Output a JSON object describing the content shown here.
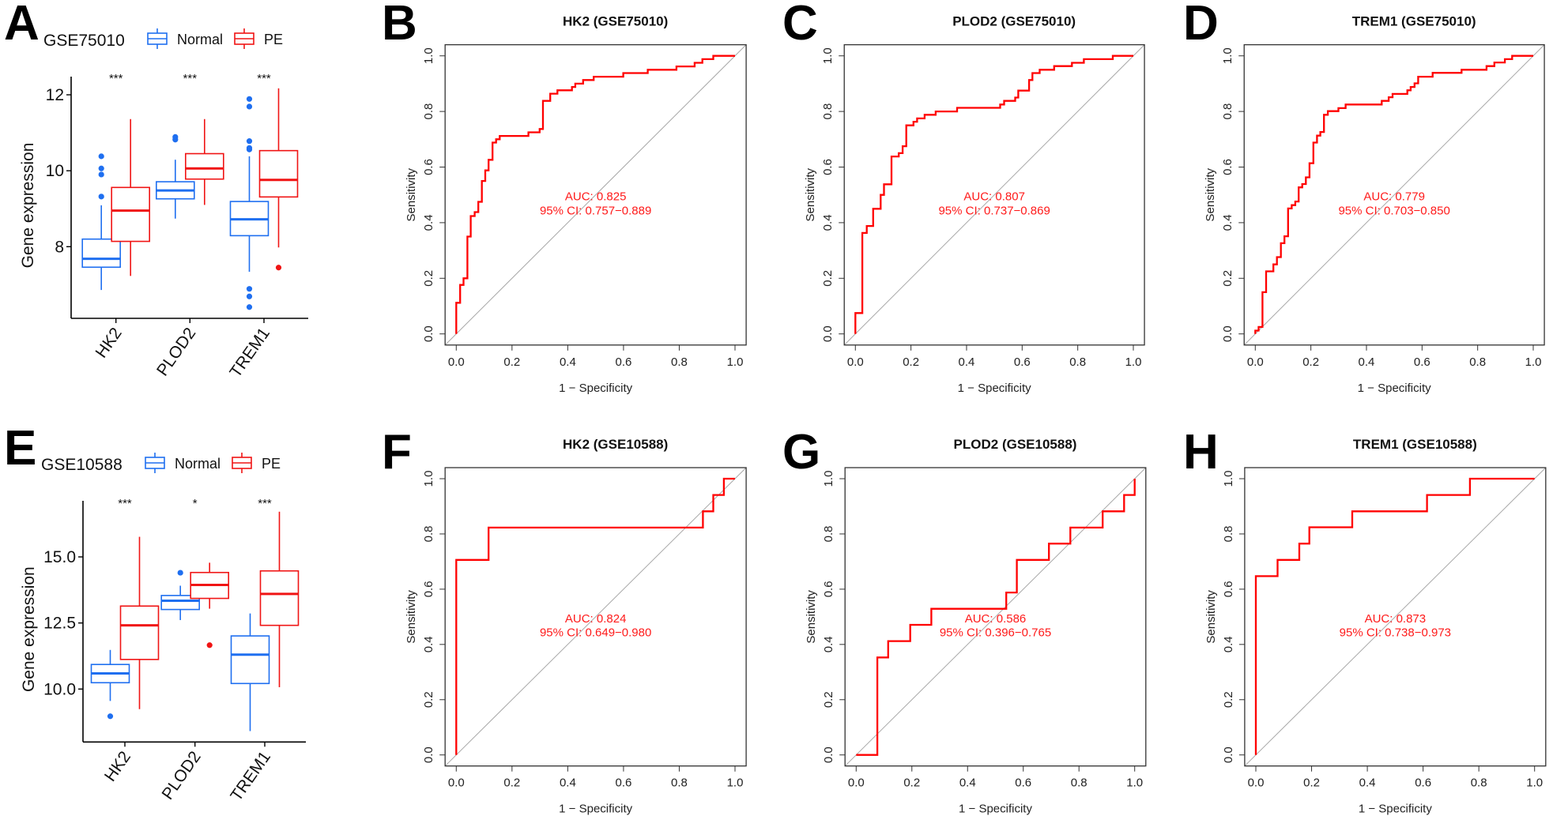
{
  "figure": {
    "colors": {
      "normal": "#1f6ff0",
      "pe": "#f01414",
      "roc_curve": "#ff0000",
      "diagonal": "#a8a8a8",
      "axis": "#333333"
    }
  },
  "chart_data": [
    {
      "panel": "A",
      "type": "boxplot",
      "title": "GSE75010",
      "ylabel": "Gene expression",
      "xlabel": "",
      "ylim": [
        6.2,
        12.6
      ],
      "yticks": [
        8,
        10,
        12
      ],
      "ytick_labels": [
        "8",
        "10",
        "12"
      ],
      "categories": [
        "HK2",
        "PLOD2",
        "TREM1"
      ],
      "legend": {
        "position": "top",
        "entries": [
          "Normal",
          "PE"
        ]
      },
      "significance": [
        "***",
        "***",
        "***"
      ],
      "series": [
        {
          "name": "Normal",
          "boxes": [
            {
              "whisker_low": 6.86,
              "q1": 7.46,
              "median": 7.68,
              "q3": 8.2,
              "whisker_high": 9.09,
              "outliers": [
                9.32,
                9.9,
                10.06,
                10.38
              ]
            },
            {
              "whisker_low": 8.74,
              "q1": 9.26,
              "median": 9.48,
              "q3": 9.71,
              "whisker_high": 10.29,
              "outliers": [
                10.82,
                10.89
              ]
            },
            {
              "whisker_low": 7.34,
              "q1": 8.29,
              "median": 8.72,
              "q3": 9.19,
              "whisker_high": 10.38,
              "outliers": [
                6.41,
                6.69,
                6.89,
                10.56,
                10.6,
                10.78,
                11.69,
                11.89
              ]
            }
          ]
        },
        {
          "name": "PE",
          "boxes": [
            {
              "whisker_low": 7.23,
              "q1": 8.14,
              "median": 8.95,
              "q3": 9.56,
              "whisker_high": 11.36,
              "outliers": []
            },
            {
              "whisker_low": 9.1,
              "q1": 9.78,
              "median": 10.06,
              "q3": 10.45,
              "whisker_high": 11.36,
              "outliers": []
            },
            {
              "whisker_low": 7.98,
              "q1": 9.31,
              "median": 9.76,
              "q3": 10.53,
              "whisker_high": 12.17,
              "outliers": [
                7.45
              ]
            }
          ]
        }
      ]
    },
    {
      "panel": "B",
      "type": "line",
      "subtype": "roc",
      "title": "HK2 (GSE75010)",
      "xlabel": "1 − Specificity",
      "ylabel": "Sensitivity",
      "xlim": [
        0,
        1
      ],
      "ylim": [
        0,
        1
      ],
      "ticks": [
        "0.0",
        "0.2",
        "0.4",
        "0.6",
        "0.8",
        "1.0"
      ],
      "auc_label": "AUC: 0.825",
      "ci_label": "95% CI: 0.757−0.889",
      "auc": 0.825,
      "ci": [
        0.757,
        0.889
      ],
      "x": [
        0,
        0,
        0.014,
        0.014,
        0.026,
        0.026,
        0.04,
        0.04,
        0.052,
        0.052,
        0.066,
        0.066,
        0.079,
        0.079,
        0.092,
        0.092,
        0.104,
        0.104,
        0.116,
        0.116,
        0.13,
        0.13,
        0.143,
        0.143,
        0.156,
        0.156,
        0.259,
        0.259,
        0.299,
        0.299,
        0.311,
        0.311,
        0.337,
        0.337,
        0.363,
        0.363,
        0.415,
        0.415,
        0.427,
        0.427,
        0.455,
        0.455,
        0.493,
        0.493,
        0.599,
        0.599,
        0.687,
        0.687,
        0.79,
        0.79,
        0.855,
        0.855,
        0.883,
        0.883,
        0.922,
        0.922,
        1.0
      ],
      "y": [
        0,
        0.112,
        0.112,
        0.176,
        0.176,
        0.2,
        0.2,
        0.35,
        0.35,
        0.424,
        0.424,
        0.438,
        0.438,
        0.475,
        0.475,
        0.55,
        0.55,
        0.588,
        0.588,
        0.626,
        0.626,
        0.688,
        0.688,
        0.7,
        0.7,
        0.712,
        0.712,
        0.725,
        0.725,
        0.737,
        0.737,
        0.838,
        0.838,
        0.864,
        0.864,
        0.876,
        0.876,
        0.888,
        0.888,
        0.9,
        0.9,
        0.913,
        0.913,
        0.925,
        0.925,
        0.938,
        0.938,
        0.95,
        0.95,
        0.962,
        0.962,
        0.975,
        0.975,
        0.988,
        0.988,
        1.0,
        1.0
      ]
    },
    {
      "panel": "C",
      "type": "line",
      "subtype": "roc",
      "title": "PLOD2 (GSE75010)",
      "xlabel": "1 − Specificity",
      "ylabel": "Sensitivity",
      "xlim": [
        0,
        1
      ],
      "ylim": [
        0,
        1
      ],
      "ticks": [
        "0.0",
        "0.2",
        "0.4",
        "0.6",
        "0.8",
        "1.0"
      ],
      "auc_label": "AUC: 0.807",
      "ci_label": "95% CI: 0.737−0.869",
      "auc": 0.807,
      "ci": [
        0.737,
        0.869
      ],
      "x": [
        0,
        0,
        0.025,
        0.025,
        0.041,
        0.041,
        0.064,
        0.064,
        0.091,
        0.091,
        0.103,
        0.103,
        0.13,
        0.13,
        0.156,
        0.156,
        0.17,
        0.17,
        0.183,
        0.183,
        0.209,
        0.209,
        0.222,
        0.222,
        0.249,
        0.249,
        0.289,
        0.289,
        0.366,
        0.366,
        0.521,
        0.521,
        0.535,
        0.535,
        0.575,
        0.575,
        0.586,
        0.586,
        0.625,
        0.625,
        0.637,
        0.637,
        0.663,
        0.663,
        0.715,
        0.715,
        0.779,
        0.779,
        0.822,
        0.822,
        0.926,
        0.926,
        1.0
      ],
      "y": [
        0,
        0.075,
        0.075,
        0.363,
        0.363,
        0.388,
        0.388,
        0.45,
        0.45,
        0.5,
        0.5,
        0.538,
        0.538,
        0.638,
        0.638,
        0.65,
        0.65,
        0.675,
        0.675,
        0.75,
        0.75,
        0.763,
        0.763,
        0.775,
        0.775,
        0.788,
        0.788,
        0.8,
        0.8,
        0.813,
        0.813,
        0.825,
        0.825,
        0.838,
        0.838,
        0.85,
        0.85,
        0.875,
        0.875,
        0.913,
        0.913,
        0.938,
        0.938,
        0.95,
        0.95,
        0.963,
        0.963,
        0.975,
        0.975,
        0.988,
        0.988,
        1.0,
        1.0
      ]
    },
    {
      "panel": "D",
      "type": "line",
      "subtype": "roc",
      "title": "TREM1 (GSE75010)",
      "xlabel": "1 − Specificity",
      "ylabel": "Sensitivity",
      "xlim": [
        0,
        1
      ],
      "ylim": [
        0,
        1
      ],
      "ticks": [
        "0.0",
        "0.2",
        "0.4",
        "0.6",
        "0.8",
        "1.0"
      ],
      "auc_label": "AUC: 0.779",
      "ci_label": "95% CI: 0.703−0.850",
      "auc": 0.779,
      "ci": [
        0.703,
        0.85
      ],
      "x": [
        0,
        0,
        0.012,
        0.012,
        0.026,
        0.026,
        0.039,
        0.039,
        0.065,
        0.065,
        0.078,
        0.078,
        0.092,
        0.092,
        0.105,
        0.105,
        0.118,
        0.118,
        0.131,
        0.131,
        0.144,
        0.144,
        0.156,
        0.156,
        0.169,
        0.169,
        0.182,
        0.182,
        0.195,
        0.195,
        0.209,
        0.209,
        0.222,
        0.222,
        0.234,
        0.234,
        0.247,
        0.247,
        0.261,
        0.261,
        0.299,
        0.299,
        0.325,
        0.325,
        0.455,
        0.455,
        0.48,
        0.48,
        0.494,
        0.494,
        0.547,
        0.547,
        0.559,
        0.559,
        0.573,
        0.573,
        0.586,
        0.586,
        0.638,
        0.638,
        0.742,
        0.742,
        0.832,
        0.832,
        0.86,
        0.86,
        0.898,
        0.898,
        0.924,
        0.924,
        1.0
      ],
      "y": [
        0,
        0.012,
        0.012,
        0.025,
        0.025,
        0.15,
        0.15,
        0.225,
        0.225,
        0.25,
        0.25,
        0.276,
        0.276,
        0.326,
        0.326,
        0.351,
        0.351,
        0.451,
        0.451,
        0.463,
        0.463,
        0.476,
        0.476,
        0.527,
        0.527,
        0.539,
        0.539,
        0.563,
        0.563,
        0.614,
        0.614,
        0.688,
        0.688,
        0.713,
        0.713,
        0.726,
        0.726,
        0.788,
        0.788,
        0.801,
        0.801,
        0.812,
        0.812,
        0.825,
        0.825,
        0.838,
        0.838,
        0.851,
        0.851,
        0.863,
        0.863,
        0.876,
        0.876,
        0.888,
        0.888,
        0.901,
        0.901,
        0.925,
        0.925,
        0.939,
        0.939,
        0.95,
        0.95,
        0.963,
        0.963,
        0.976,
        0.976,
        0.988,
        0.988,
        1.0,
        1.0
      ]
    },
    {
      "panel": "E",
      "type": "boxplot",
      "title": "GSE10588",
      "ylabel": "Gene expression",
      "xlabel": "",
      "ylim": [
        8.1,
        17.2
      ],
      "yticks": [
        10.0,
        12.5,
        15.0
      ],
      "ytick_labels": [
        "10.0",
        "12.5",
        "15.0"
      ],
      "categories": [
        "HK2",
        "PLOD2",
        "TREM1"
      ],
      "legend": {
        "position": "top",
        "entries": [
          "Normal",
          "PE"
        ]
      },
      "significance": [
        "***",
        "*",
        "***"
      ],
      "series": [
        {
          "name": "Normal",
          "boxes": [
            {
              "whisker_low": 9.55,
              "q1": 10.24,
              "median": 10.59,
              "q3": 10.93,
              "whisker_high": 11.48,
              "outliers": [
                8.97
              ]
            },
            {
              "whisker_low": 12.61,
              "q1": 13.01,
              "median": 13.34,
              "q3": 13.54,
              "whisker_high": 13.91,
              "outliers": [
                14.4
              ]
            },
            {
              "whisker_low": 8.41,
              "q1": 10.21,
              "median": 11.3,
              "q3": 12.01,
              "whisker_high": 12.86,
              "outliers": []
            }
          ]
        },
        {
          "name": "PE",
          "boxes": [
            {
              "whisker_low": 9.24,
              "q1": 11.12,
              "median": 12.41,
              "q3": 13.14,
              "whisker_high": 15.76,
              "outliers": []
            },
            {
              "whisker_low": 13.04,
              "q1": 13.43,
              "median": 13.94,
              "q3": 14.41,
              "whisker_high": 14.78,
              "outliers": [
                11.66
              ]
            },
            {
              "whisker_low": 10.07,
              "q1": 12.41,
              "median": 13.6,
              "q3": 14.47,
              "whisker_high": 16.71,
              "outliers": []
            }
          ]
        }
      ]
    },
    {
      "panel": "F",
      "type": "line",
      "subtype": "roc",
      "title": "HK2 (GSE10588)",
      "xlabel": "1 − Specificity",
      "ylabel": "Sensitivity",
      "xlim": [
        0,
        1
      ],
      "ylim": [
        0,
        1
      ],
      "ticks": [
        "0.0",
        "0.2",
        "0.4",
        "0.6",
        "0.8",
        "1.0"
      ],
      "auc_label": "AUC: 0.824",
      "ci_label": "95% CI: 0.649−0.980",
      "auc": 0.824,
      "ci": [
        0.649,
        0.98
      ],
      "x": [
        0,
        0,
        0.116,
        0.116,
        0.885,
        0.885,
        0.922,
        0.922,
        0.96,
        0.96,
        1.0
      ],
      "y": [
        0,
        0.706,
        0.706,
        0.823,
        0.823,
        0.882,
        0.882,
        0.941,
        0.941,
        1.0,
        1.0
      ]
    },
    {
      "panel": "G",
      "type": "line",
      "subtype": "roc",
      "title": "PLOD2 (GSE10588)",
      "xlabel": "1 − Specificity",
      "ylabel": "Sensitivity",
      "xlim": [
        0,
        1
      ],
      "ylim": [
        0,
        1
      ],
      "ticks": [
        "0.0",
        "0.2",
        "0.4",
        "0.6",
        "0.8",
        "1.0"
      ],
      "auc_label": "AUC: 0.586",
      "ci_label": "95% CI: 0.396−0.765",
      "auc": 0.586,
      "ci": [
        0.396,
        0.765
      ],
      "x": [
        0,
        0.076,
        0.076,
        0.115,
        0.115,
        0.194,
        0.194,
        0.27,
        0.27,
        0.539,
        0.539,
        0.577,
        0.577,
        0.692,
        0.692,
        0.769,
        0.769,
        0.885,
        0.885,
        0.962,
        0.962,
        1.0,
        1.0
      ],
      "y": [
        0,
        0,
        0.353,
        0.353,
        0.412,
        0.412,
        0.471,
        0.471,
        0.529,
        0.529,
        0.588,
        0.588,
        0.706,
        0.706,
        0.765,
        0.765,
        0.823,
        0.823,
        0.882,
        0.882,
        0.941,
        0.941,
        1.0
      ]
    },
    {
      "panel": "H",
      "type": "line",
      "subtype": "roc",
      "title": "TREM1 (GSE10588)",
      "xlabel": "1 − Specificity",
      "ylabel": "Sensitivity",
      "xlim": [
        0,
        1
      ],
      "ylim": [
        0,
        1
      ],
      "ticks": [
        "0.0",
        "0.2",
        "0.4",
        "0.6",
        "0.8",
        "1.0"
      ],
      "auc_label": "AUC: 0.873",
      "ci_label": "95% CI: 0.738−0.973",
      "auc": 0.873,
      "ci": [
        0.738,
        0.973
      ],
      "x": [
        0,
        0,
        0.078,
        0.078,
        0.156,
        0.156,
        0.192,
        0.192,
        0.346,
        0.346,
        0.614,
        0.614,
        0.768,
        0.768,
        1.0
      ],
      "y": [
        0,
        0.647,
        0.647,
        0.706,
        0.706,
        0.765,
        0.765,
        0.824,
        0.824,
        0.882,
        0.882,
        0.941,
        0.941,
        1.0,
        1.0
      ]
    }
  ]
}
